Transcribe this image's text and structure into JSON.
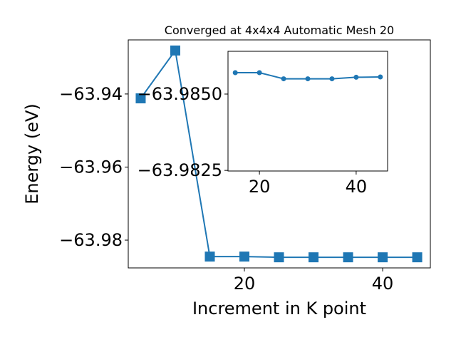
{
  "chart_data": [
    {
      "type": "line",
      "title": "Converged at 4x4x4 Automatic Mesh 20",
      "x_label": "Increment in K point",
      "y_label": "Energy (eV)",
      "x": [
        5,
        10,
        15,
        20,
        25,
        30,
        35,
        40,
        45
      ],
      "series": [
        {
          "color": "#1f77b4",
          "marker": "square",
          "values": [
            -63.9412,
            -63.9281,
            -63.9845,
            -63.9845,
            -63.9847,
            -63.9847,
            -63.9847,
            -63.9847,
            -63.9847
          ]
        }
      ],
      "xlim": [
        3.2,
        46.9
      ],
      "xticks": [
        20,
        40
      ],
      "ylim": [
        -63.9876,
        -63.9252
      ],
      "yticks": [
        {
          "value": -63.98,
          "label": "−63.98"
        },
        {
          "value": -63.96,
          "label": "−63.96"
        },
        {
          "value": -63.94,
          "label": "−63.94"
        }
      ]
    },
    {
      "type": "line",
      "x": [
        15,
        20,
        25,
        30,
        35,
        40,
        45
      ],
      "series": [
        {
          "color": "#1f77b4",
          "marker": "circle",
          "values": [
            -63.9857,
            -63.9857,
            -63.9855,
            -63.9855,
            -63.9855,
            -63.98555,
            -63.98556
          ]
        }
      ],
      "xlim": [
        13.5,
        46.5
      ],
      "xticks": [
        20,
        40
      ],
      "ylim": [
        -63.98248,
        -63.9864
      ],
      "yticks": [
        {
          "value": -63.985,
          "label": "−63.9850"
        },
        {
          "value": -63.9825,
          "label": "−63.9825"
        }
      ]
    }
  ]
}
